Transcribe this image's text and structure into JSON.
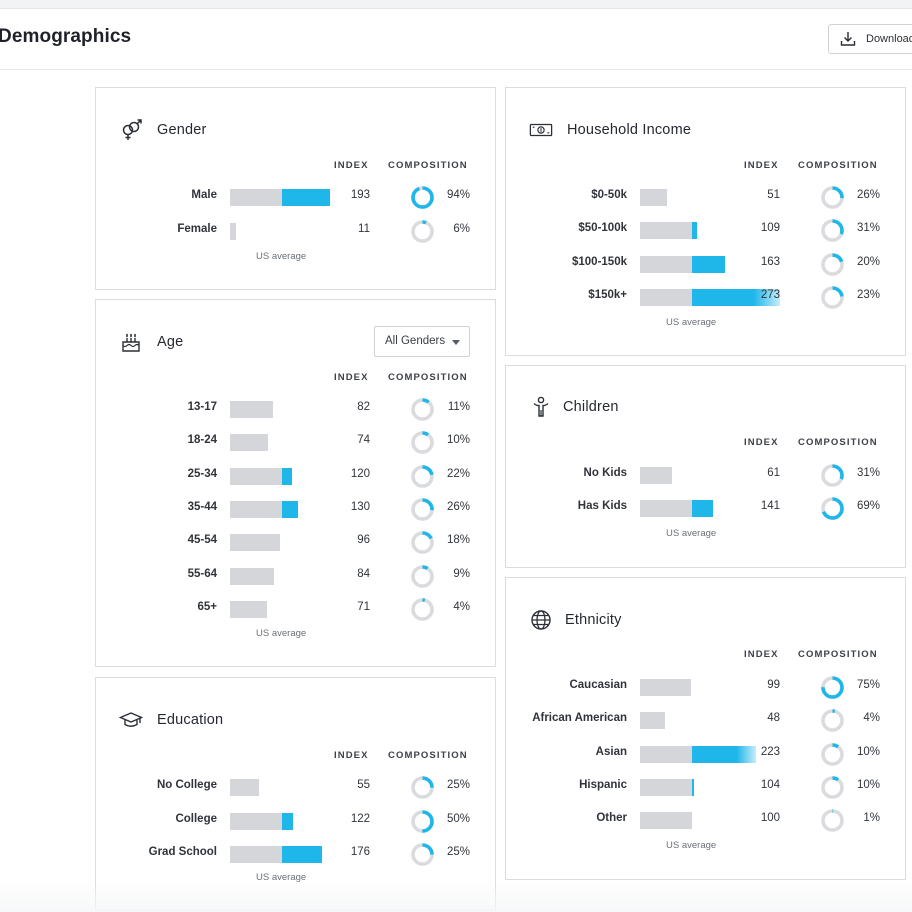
{
  "page": {
    "title": "Demographics",
    "download_label": "Download"
  },
  "headers": {
    "index": "INDEX",
    "composition": "COMPOSITION",
    "us_average": "US average"
  },
  "colors": {
    "accent": "#1fb6ea",
    "bar_gray": "#d4d6da",
    "ring_gray": "#d9dbde"
  },
  "age_filter": {
    "selected": "All Genders"
  },
  "cards": {
    "gender": {
      "title": "Gender",
      "icon": "gender-icon",
      "rows": [
        {
          "label": "Male",
          "index": 193,
          "composition": "94%",
          "comp_value": 0.94
        },
        {
          "label": "Female",
          "index": 11,
          "composition": "6%",
          "comp_value": 0.06
        }
      ]
    },
    "age": {
      "title": "Age",
      "icon": "cake-icon",
      "rows": [
        {
          "label": "13-17",
          "index": 82,
          "composition": "11%",
          "comp_value": 0.11
        },
        {
          "label": "18-24",
          "index": 74,
          "composition": "10%",
          "comp_value": 0.1
        },
        {
          "label": "25-34",
          "index": 120,
          "composition": "22%",
          "comp_value": 0.22
        },
        {
          "label": "35-44",
          "index": 130,
          "composition": "26%",
          "comp_value": 0.26
        },
        {
          "label": "45-54",
          "index": 96,
          "composition": "18%",
          "comp_value": 0.18
        },
        {
          "label": "55-64",
          "index": 84,
          "composition": "9%",
          "comp_value": 0.09
        },
        {
          "label": "65+",
          "index": 71,
          "composition": "4%",
          "comp_value": 0.04
        }
      ]
    },
    "education": {
      "title": "Education",
      "icon": "graduation-cap-icon",
      "rows": [
        {
          "label": "No College",
          "index": 55,
          "composition": "25%",
          "comp_value": 0.25
        },
        {
          "label": "College",
          "index": 122,
          "composition": "50%",
          "comp_value": 0.5
        },
        {
          "label": "Grad School",
          "index": 176,
          "composition": "25%",
          "comp_value": 0.25
        }
      ]
    },
    "income": {
      "title": "Household Income",
      "icon": "money-icon",
      "rows": [
        {
          "label": "$0-50k",
          "index": 51,
          "composition": "26%",
          "comp_value": 0.26
        },
        {
          "label": "$50-100k",
          "index": 109,
          "composition": "31%",
          "comp_value": 0.31
        },
        {
          "label": "$100-150k",
          "index": 163,
          "composition": "20%",
          "comp_value": 0.2
        },
        {
          "label": "$150k+",
          "index": 273,
          "composition": "23%",
          "comp_value": 0.23
        }
      ]
    },
    "children": {
      "title": "Children",
      "icon": "child-icon",
      "rows": [
        {
          "label": "No Kids",
          "index": 61,
          "composition": "31%",
          "comp_value": 0.31
        },
        {
          "label": "Has Kids",
          "index": 141,
          "composition": "69%",
          "comp_value": 0.69
        }
      ]
    },
    "ethnicity": {
      "title": "Ethnicity",
      "icon": "globe-icon",
      "rows": [
        {
          "label": "Caucasian",
          "index": 99,
          "composition": "75%",
          "comp_value": 0.75
        },
        {
          "label": "African American",
          "index": 48,
          "composition": "4%",
          "comp_value": 0.04
        },
        {
          "label": "Asian",
          "index": 223,
          "composition": "10%",
          "comp_value": 0.1
        },
        {
          "label": "Hispanic",
          "index": 104,
          "composition": "10%",
          "comp_value": 0.1
        },
        {
          "label": "Other",
          "index": 100,
          "composition": "1%",
          "comp_value": 0.01
        }
      ]
    }
  }
}
